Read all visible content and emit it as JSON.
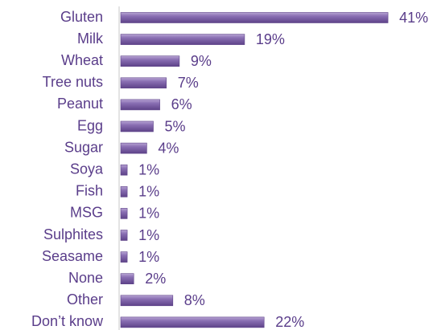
{
  "chart_data": {
    "type": "bar",
    "orientation": "horizontal",
    "categories": [
      "Gluten",
      "Milk",
      "Wheat",
      "Tree nuts",
      "Peanut",
      "Egg",
      "Sugar",
      "Soya",
      "Fish",
      "MSG",
      "Sulphites",
      "Seasame",
      "None",
      "Other",
      "Don’t know"
    ],
    "values": [
      41,
      19,
      9,
      7,
      6,
      5,
      4,
      1,
      1,
      1,
      1,
      1,
      2,
      8,
      22
    ],
    "value_labels": [
      "41%",
      "19%",
      "9%",
      "7%",
      "6%",
      "5%",
      "4%",
      "1%",
      "1%",
      "1%",
      "1%",
      "1%",
      "2%",
      "8%",
      "22%"
    ],
    "color": "#7a5fa3"
  }
}
